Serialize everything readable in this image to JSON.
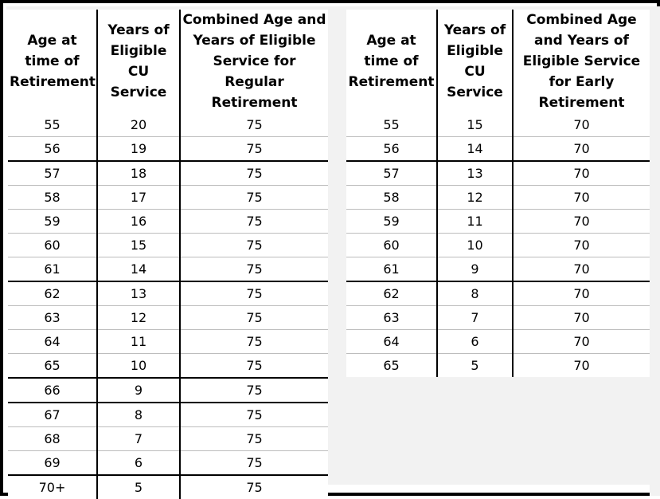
{
  "regular": {
    "headers": {
      "age": "Age at time of Retirement",
      "years": "Years of Eligible CU Service",
      "combined": "Combined Age and Years of Eligible Service for Regular Retirement"
    },
    "rows": [
      {
        "age": "55",
        "years": "20",
        "combined": "75"
      },
      {
        "age": "56",
        "years": "19",
        "combined": "75"
      },
      {
        "age": "57",
        "years": "18",
        "combined": "75"
      },
      {
        "age": "58",
        "years": "17",
        "combined": "75"
      },
      {
        "age": "59",
        "years": "16",
        "combined": "75"
      },
      {
        "age": "60",
        "years": "15",
        "combined": "75"
      },
      {
        "age": "61",
        "years": "14",
        "combined": "75"
      },
      {
        "age": "62",
        "years": "13",
        "combined": "75"
      },
      {
        "age": "63",
        "years": "12",
        "combined": "75"
      },
      {
        "age": "64",
        "years": "11",
        "combined": "75"
      },
      {
        "age": "65",
        "years": "10",
        "combined": "75"
      },
      {
        "age": "66",
        "years": "9",
        "combined": "75"
      },
      {
        "age": "67",
        "years": "8",
        "combined": "75"
      },
      {
        "age": "68",
        "years": "7",
        "combined": "75"
      },
      {
        "age": "69",
        "years": "6",
        "combined": "75"
      },
      {
        "age": "70+",
        "years": "5",
        "combined": "75"
      }
    ]
  },
  "early": {
    "headers": {
      "age": "Age at time of Retirement",
      "years": "Years of Eligible CU Service",
      "combined": "Combined Age and Years of Eligible Service for Early Retirement"
    },
    "rows": [
      {
        "age": "55",
        "years": "15",
        "combined": "70"
      },
      {
        "age": "56",
        "years": "14",
        "combined": "70"
      },
      {
        "age": "57",
        "years": "13",
        "combined": "70"
      },
      {
        "age": "58",
        "years": "12",
        "combined": "70"
      },
      {
        "age": "59",
        "years": "11",
        "combined": "70"
      },
      {
        "age": "60",
        "years": "10",
        "combined": "70"
      },
      {
        "age": "61",
        "years": "9",
        "combined": "70"
      },
      {
        "age": "62",
        "years": "8",
        "combined": "70"
      },
      {
        "age": "63",
        "years": "7",
        "combined": "70"
      },
      {
        "age": "64",
        "years": "6",
        "combined": "70"
      },
      {
        "age": "65",
        "years": "5",
        "combined": "70"
      }
    ]
  }
}
